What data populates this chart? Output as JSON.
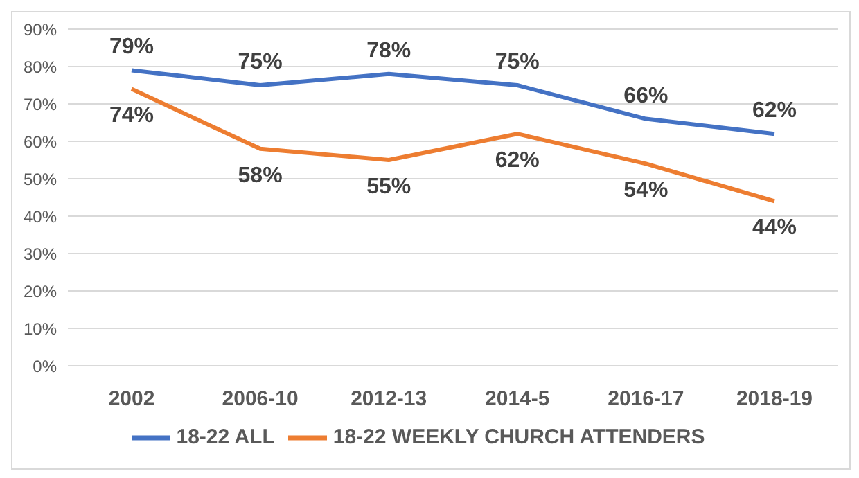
{
  "chart_data": {
    "type": "line",
    "categories": [
      "2002",
      "2006-10",
      "2012-13",
      "2014-5",
      "2016-17",
      "2018-19"
    ],
    "series": [
      {
        "name": "18-22 ALL",
        "color": "#4472c4",
        "values": [
          79,
          75,
          78,
          75,
          66,
          62
        ],
        "value_labels": [
          "79%",
          "75%",
          "78%",
          "75%",
          "66%",
          "62%"
        ]
      },
      {
        "name": "18-22 WEEKLY CHURCH ATTENDERS",
        "color": "#ed7d31",
        "values": [
          74,
          58,
          55,
          62,
          54,
          44
        ],
        "value_labels": [
          "74%",
          "58%",
          "55%",
          "62%",
          "54%",
          "44%"
        ]
      }
    ],
    "ylim": [
      0,
      90
    ],
    "yticks": [
      {
        "value": 0,
        "label": "0%"
      },
      {
        "value": 10,
        "label": "10%"
      },
      {
        "value": 20,
        "label": "20%"
      },
      {
        "value": 30,
        "label": "30%"
      },
      {
        "value": 40,
        "label": "40%"
      },
      {
        "value": 50,
        "label": "50%"
      },
      {
        "value": 60,
        "label": "60%"
      },
      {
        "value": 70,
        "label": "70%"
      },
      {
        "value": 80,
        "label": "80%"
      },
      {
        "value": 90,
        "label": "90%"
      }
    ],
    "grid": "y",
    "legend": "bottom",
    "marker": "none",
    "line_style": "solid"
  }
}
